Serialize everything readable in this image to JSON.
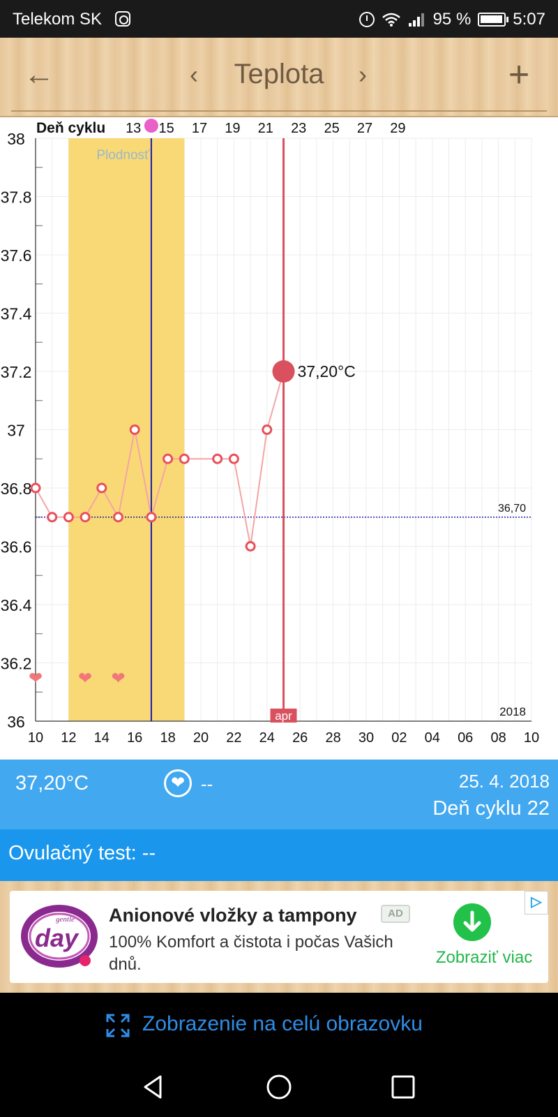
{
  "status_bar": {
    "carrier": "Telekom SK",
    "battery": "95 %",
    "time": "5:07",
    "icons": [
      "instagram-icon",
      "alarm-icon",
      "wifi-icon",
      "signal-icon",
      "battery-icon"
    ]
  },
  "app_bar": {
    "title": "Teplota",
    "icons": [
      "back-arrow-icon",
      "chevron-left-icon",
      "chevron-right-icon",
      "plus-icon"
    ]
  },
  "chart_data": {
    "type": "line",
    "top_axis_label": "Deň cyklu",
    "cycle_day_ticks": [
      "13",
      "15",
      "17",
      "19",
      "21",
      "23",
      "25",
      "27",
      "29"
    ],
    "x_ticks": [
      "10",
      "12",
      "14",
      "16",
      "18",
      "20",
      "22",
      "24",
      "26",
      "28",
      "30",
      "02",
      "04",
      "06",
      "08",
      "10"
    ],
    "x_range_days": [
      10,
      40
    ],
    "y_ticks": [
      "38",
      "37.8",
      "37.6",
      "37.4",
      "37.2",
      "37",
      "36.8",
      "36.6",
      "36.4",
      "36.2",
      "36"
    ],
    "ylim": [
      36,
      38
    ],
    "fertility_label": "Plodnosť",
    "fertility_window": [
      12,
      19
    ],
    "ovulation_day": 17,
    "baseline_value": 36.7,
    "baseline_label": "36,70",
    "selected_day": 25,
    "selected_value": 37.2,
    "selected_label": "37,20°C",
    "month_label": "apr",
    "year_label": "2018",
    "series": [
      {
        "x": [
          10,
          11,
          12,
          13,
          14,
          15,
          16,
          17,
          18,
          19,
          21,
          22,
          23,
          24,
          25
        ],
        "values": [
          36.8,
          36.7,
          36.7,
          36.7,
          36.8,
          36.7,
          37.0,
          36.7,
          36.9,
          36.9,
          36.9,
          36.9,
          36.6,
          37.0,
          37.2
        ]
      }
    ],
    "heart_days": [
      10,
      13,
      15
    ],
    "colors": {
      "line": "#f4a4a4",
      "marker": "#e8505a",
      "selected": "#d9505f",
      "fertility": "#f9d976",
      "ovulation": "#1a1aa8",
      "baseline": "#1a1aa8"
    }
  },
  "info_panel": {
    "temperature": "37,20°C",
    "intercourse_value": "--",
    "date": "25. 4. 2018",
    "cycle_day": "Deň cyklu 22"
  },
  "ovulation_test": {
    "label": "Ovulačný test: --"
  },
  "ad": {
    "title": "Anionové vložky a tampony",
    "badge": "AD",
    "body": "100% Komfort a čistota i počas Vašich dnů.",
    "cta": "Zobraziť viac",
    "logo_words": [
      "gentle",
      "day"
    ]
  },
  "fullscreen": {
    "label": "Zobrazenie na celú obrazovku"
  },
  "colors": {
    "info_bg": "#42a8f0",
    "ovul_bg": "#1a96ec",
    "app_text": "#6f5a43",
    "link": "#2e8ee8"
  }
}
